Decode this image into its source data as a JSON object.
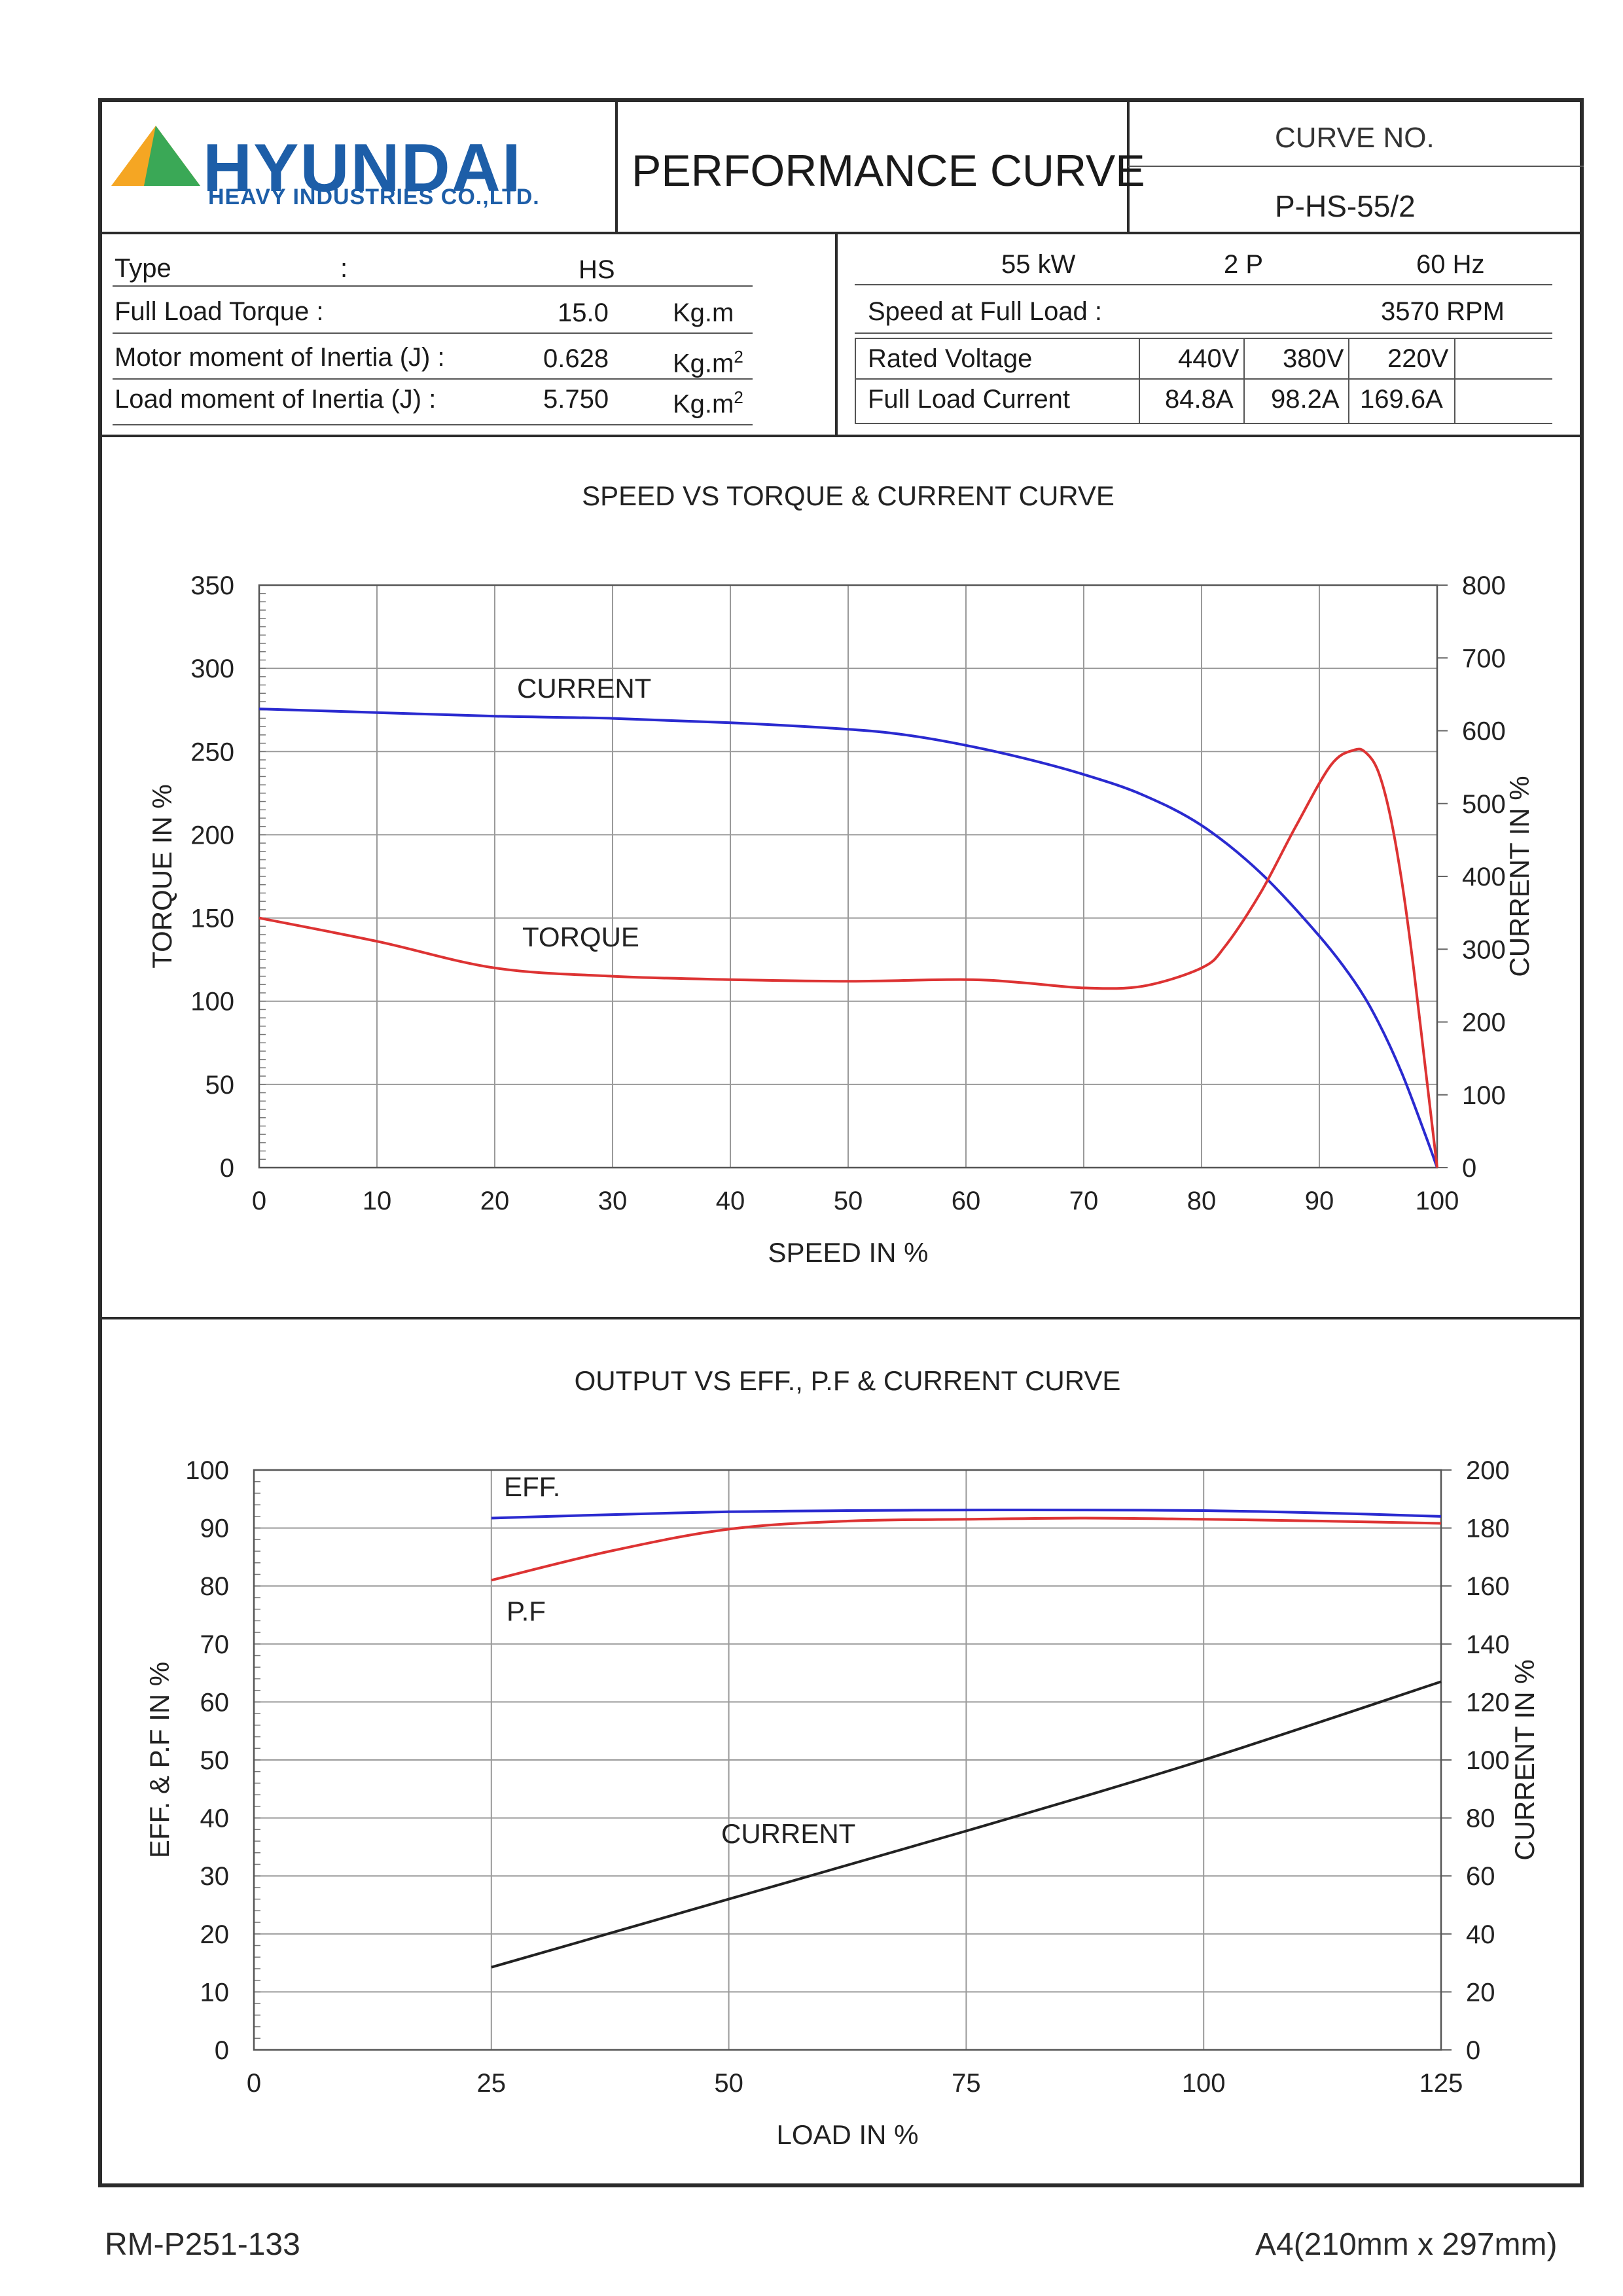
{
  "header": {
    "brand": "HYUNDAI",
    "brand_sub": "HEAVY INDUSTRIES CO.,LTD.",
    "title": "PERFORMANCE CURVE",
    "curve_no_label": "CURVE NO.",
    "curve_no": "P-HS-55/2",
    "brand_colors": {
      "blue": "#1d5ea8",
      "green": "#3aa856",
      "orange": "#f5a623"
    }
  },
  "specs_left": {
    "type_label": "Type",
    "type_colon": ":",
    "type_value": "HS",
    "torque_label": "Full Load Torque :",
    "torque_value": "15.0",
    "torque_unit": "Kg.m",
    "motor_inertia_label": "Motor moment of Inertia (J) :",
    "motor_inertia_value": "0.628",
    "motor_inertia_unit": "Kg.m",
    "load_inertia_label": "Load moment of Inertia (J) :",
    "load_inertia_value": "5.750",
    "load_inertia_unit": "Kg.m",
    "unit_sup": "2"
  },
  "specs_right": {
    "power_value": "55",
    "power_unit": "kW",
    "poles_value": "2",
    "poles_unit": "P",
    "freq_value": "60",
    "freq_unit": "Hz",
    "speed_label": "Speed at Full Load :",
    "speed_value": "3570",
    "speed_unit": "RPM",
    "voltage_label": "Rated Voltage",
    "voltages": [
      "440V",
      "380V",
      "220V"
    ],
    "current_label": "Full Load Current",
    "currents": [
      "84.8A",
      "98.2A",
      "169.6A"
    ]
  },
  "chart_data": [
    {
      "type": "line",
      "title": "SPEED VS TORQUE & CURRENT CURVE",
      "xlabel": "SPEED IN %",
      "ylabel": "TORQUE IN %",
      "y2label": "CURRENT IN %",
      "xlim": [
        0,
        100
      ],
      "ylim": [
        0,
        350
      ],
      "y2lim": [
        0,
        800
      ],
      "x_ticks": [
        0,
        10,
        20,
        30,
        40,
        50,
        60,
        70,
        80,
        90,
        100
      ],
      "y_ticks": [
        0,
        50,
        100,
        150,
        200,
        250,
        300,
        350
      ],
      "y2_ticks": [
        0,
        100,
        200,
        300,
        400,
        500,
        600,
        700,
        800
      ],
      "grid": true,
      "series": [
        {
          "name": "CURRENT",
          "axis": "right",
          "color": "#2a2ad0",
          "x": [
            0,
            10,
            20,
            30,
            40,
            50,
            55,
            60,
            65,
            70,
            75,
            80,
            85,
            90,
            93,
            95,
            97,
            99,
            100
          ],
          "y": [
            630,
            625,
            620,
            617,
            611,
            602,
            594,
            580,
            562,
            540,
            512,
            470,
            405,
            318,
            255,
            200,
            130,
            45,
            0
          ]
        },
        {
          "name": "TORQUE",
          "axis": "left",
          "color": "#dd3333",
          "x": [
            0,
            10,
            20,
            30,
            40,
            50,
            60,
            65,
            70,
            75,
            80,
            82,
            85,
            88,
            91,
            93,
            94,
            95,
            96,
            97,
            98,
            99,
            100
          ],
          "y": [
            150,
            136,
            120,
            115,
            113,
            112,
            113,
            111,
            108,
            109,
            120,
            133,
            165,
            205,
            242,
            251,
            249,
            238,
            212,
            172,
            120,
            60,
            0
          ]
        }
      ],
      "annotations": [
        "CURRENT",
        "TORQUE"
      ]
    },
    {
      "type": "line",
      "title": "OUTPUT VS EFF., P.F & CURRENT CURVE",
      "xlabel": "LOAD IN %",
      "ylabel": "EFF. & P.F IN %",
      "y2label": "CURRENT IN %",
      "xlim": [
        0,
        125
      ],
      "ylim": [
        0,
        100
      ],
      "y2lim": [
        0,
        200
      ],
      "x_ticks": [
        0,
        25,
        50,
        75,
        100,
        125
      ],
      "y_ticks": [
        0,
        10,
        20,
        30,
        40,
        50,
        60,
        70,
        80,
        90,
        100
      ],
      "y2_ticks": [
        0,
        20,
        40,
        60,
        80,
        100,
        120,
        140,
        160,
        180,
        200
      ],
      "grid": true,
      "series": [
        {
          "name": "EFF.",
          "axis": "left",
          "color": "#2a2ad0",
          "x": [
            25,
            37.5,
            50,
            62.5,
            75,
            87.5,
            100,
            112.5,
            125
          ],
          "y": [
            91.7,
            92.3,
            92.8,
            93.0,
            93.1,
            93.1,
            93.0,
            92.6,
            92.0
          ]
        },
        {
          "name": "P.F",
          "axis": "left",
          "color": "#dd3333",
          "x": [
            25,
            37.5,
            50,
            62.5,
            75,
            87.5,
            100,
            112.5,
            125
          ],
          "y": [
            81.0,
            86.0,
            89.8,
            91.2,
            91.5,
            91.7,
            91.5,
            91.2,
            90.8
          ]
        },
        {
          "name": "CURRENT",
          "axis": "right",
          "color": "#222222",
          "x": [
            25,
            50,
            75,
            100,
            125
          ],
          "y": [
            28.5,
            52,
            75.5,
            100,
            127
          ]
        }
      ],
      "annotations": [
        "EFF.",
        "P.F",
        "CURRENT"
      ]
    }
  ],
  "footer": {
    "left": "RM-P251-133",
    "right": "A4(210mm x 297mm)"
  }
}
